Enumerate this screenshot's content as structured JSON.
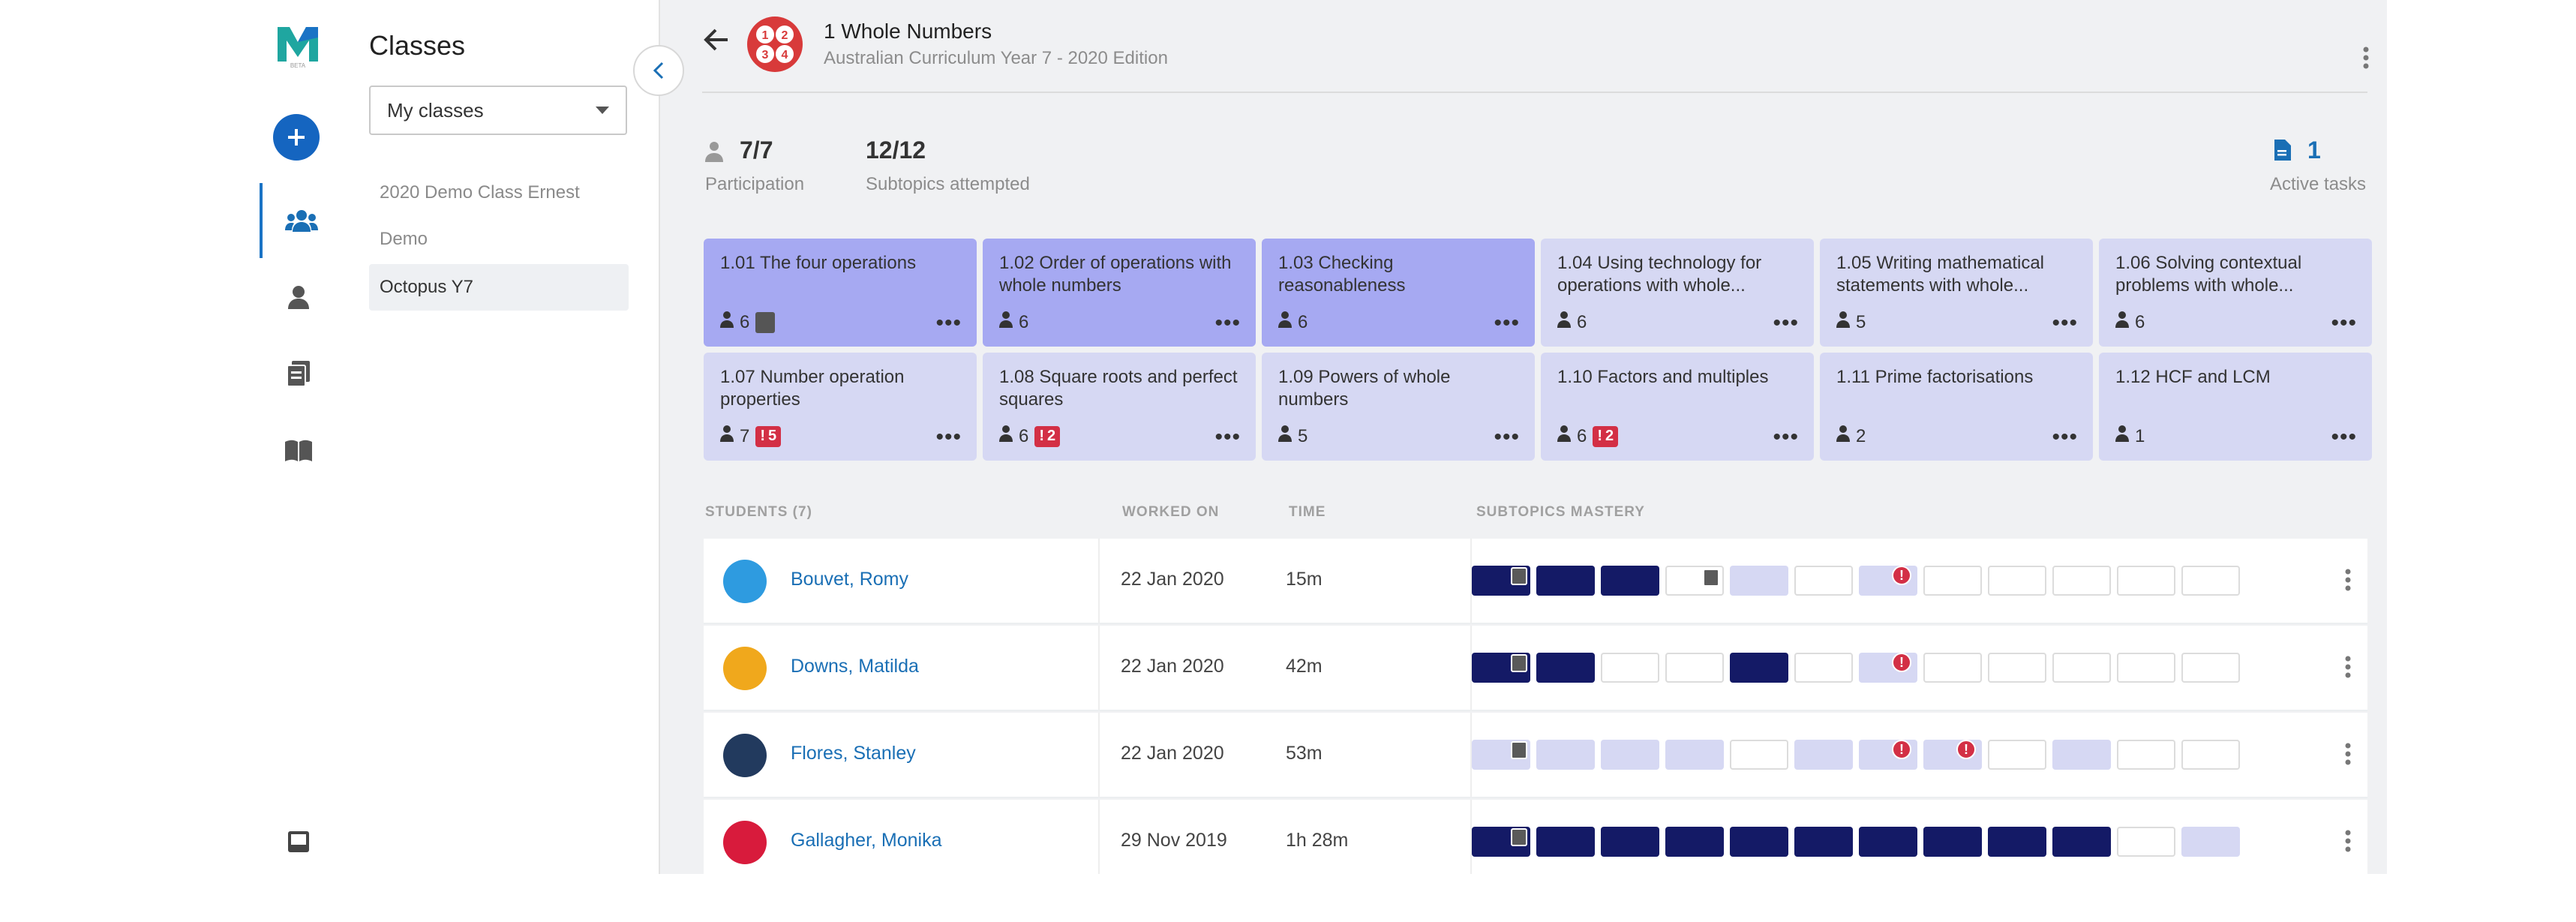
{
  "rail": {
    "logo_text": "BETA",
    "items": [
      "classes-icon",
      "student-icon",
      "tasks-icon",
      "library-icon"
    ]
  },
  "classes_panel": {
    "title": "Classes",
    "filter_value": "My classes",
    "items": [
      "2020 Demo Class Ernest",
      "Demo",
      "Octopus Y7"
    ],
    "selected": "Octopus Y7"
  },
  "topic": {
    "icon_digits": [
      "1",
      "2",
      "3",
      "4"
    ],
    "title": "1 Whole Numbers",
    "subtitle": "Australian Curriculum Year 7 - 2020 Edition"
  },
  "stats": {
    "participation": {
      "value": "7/7",
      "label": "Participation"
    },
    "attempted": {
      "value": "12/12",
      "label": "Subtopics attempted"
    },
    "tasks": {
      "value": "1",
      "label": "Active tasks"
    }
  },
  "subtopics": [
    {
      "title": "1.01 The four operations",
      "students": "6",
      "task": true,
      "alerts": null,
      "strong": true
    },
    {
      "title": "1.02 Order of operations with whole numbers",
      "students": "6",
      "task": false,
      "alerts": null,
      "strong": true
    },
    {
      "title": "1.03 Checking reasonableness",
      "students": "6",
      "task": false,
      "alerts": null,
      "strong": true
    },
    {
      "title": "1.04 Using technology for operations with whole...",
      "students": "6",
      "task": false,
      "alerts": null,
      "strong": false
    },
    {
      "title": "1.05 Writing mathematical statements with whole...",
      "students": "5",
      "task": false,
      "alerts": null,
      "strong": false
    },
    {
      "title": "1.06 Solving contextual problems with whole...",
      "students": "6",
      "task": false,
      "alerts": null,
      "strong": false
    },
    {
      "title": "1.07 Number operation properties",
      "students": "7",
      "task": false,
      "alerts": "5",
      "strong": false
    },
    {
      "title": "1.08 Square roots and perfect squares",
      "students": "6",
      "task": false,
      "alerts": "2",
      "strong": false
    },
    {
      "title": "1.09 Powers of whole numbers",
      "students": "5",
      "task": false,
      "alerts": null,
      "strong": false
    },
    {
      "title": "1.10 Factors and multiples",
      "students": "6",
      "task": false,
      "alerts": "2",
      "strong": false
    },
    {
      "title": "1.11 Prime factorisations",
      "students": "2",
      "task": false,
      "alerts": null,
      "strong": false
    },
    {
      "title": "1.12 HCF and LCM",
      "students": "1",
      "task": false,
      "alerts": null,
      "strong": false
    }
  ],
  "table": {
    "headers": {
      "students": "STUDENTS (7)",
      "worked_on": "WORKED ON",
      "time": "TIME",
      "mastery": "SUBTOPICS MASTERY"
    },
    "rows": [
      {
        "name": "Bouvet, Romy",
        "worked_on": "22 Jan 2020",
        "time": "15m",
        "avatar_color": "#2e9be0",
        "cells": [
          [
            "m",
            "doc"
          ],
          [
            "m",
            ""
          ],
          [
            "m",
            ""
          ],
          [
            "n",
            "doc"
          ],
          [
            "p",
            ""
          ],
          [
            "n",
            ""
          ],
          [
            "p",
            "alert"
          ],
          [
            "n",
            ""
          ],
          [
            "n",
            ""
          ],
          [
            "n",
            ""
          ],
          [
            "n",
            ""
          ],
          [
            "n",
            ""
          ]
        ]
      },
      {
        "name": "Downs, Matilda",
        "worked_on": "22 Jan 2020",
        "time": "42m",
        "avatar_color": "#f0a81c",
        "cells": [
          [
            "m",
            "doc"
          ],
          [
            "m",
            ""
          ],
          [
            "n",
            ""
          ],
          [
            "n",
            ""
          ],
          [
            "m",
            ""
          ],
          [
            "n",
            ""
          ],
          [
            "p",
            "alert"
          ],
          [
            "n",
            ""
          ],
          [
            "n",
            ""
          ],
          [
            "n",
            ""
          ],
          [
            "n",
            ""
          ],
          [
            "n",
            ""
          ]
        ]
      },
      {
        "name": "Flores, Stanley",
        "worked_on": "22 Jan 2020",
        "time": "53m",
        "avatar_color": "#223a5e",
        "cells": [
          [
            "p",
            "doc"
          ],
          [
            "p",
            ""
          ],
          [
            "p",
            ""
          ],
          [
            "p",
            ""
          ],
          [
            "n",
            ""
          ],
          [
            "p",
            ""
          ],
          [
            "p",
            "alert"
          ],
          [
            "p",
            "alert"
          ],
          [
            "n",
            ""
          ],
          [
            "p",
            ""
          ],
          [
            "n",
            ""
          ],
          [
            "n",
            ""
          ]
        ]
      },
      {
        "name": "Gallagher, Monika",
        "worked_on": "29 Nov 2019",
        "time": "1h 28m",
        "avatar_color": "#d81b3c",
        "cells": [
          [
            "m",
            "doc"
          ],
          [
            "m",
            ""
          ],
          [
            "m",
            ""
          ],
          [
            "m",
            ""
          ],
          [
            "m",
            ""
          ],
          [
            "m",
            ""
          ],
          [
            "m",
            ""
          ],
          [
            "m",
            ""
          ],
          [
            "m",
            ""
          ],
          [
            "m",
            ""
          ],
          [
            "n",
            ""
          ],
          [
            "p",
            ""
          ]
        ]
      }
    ]
  },
  "colors": {
    "mastered": "#141a66",
    "partial": "#d6d8f3",
    "card_strong": "#a6a9f2",
    "card": "#d6d8f3",
    "alert": "#d32f45",
    "link": "#1a6fb5"
  }
}
